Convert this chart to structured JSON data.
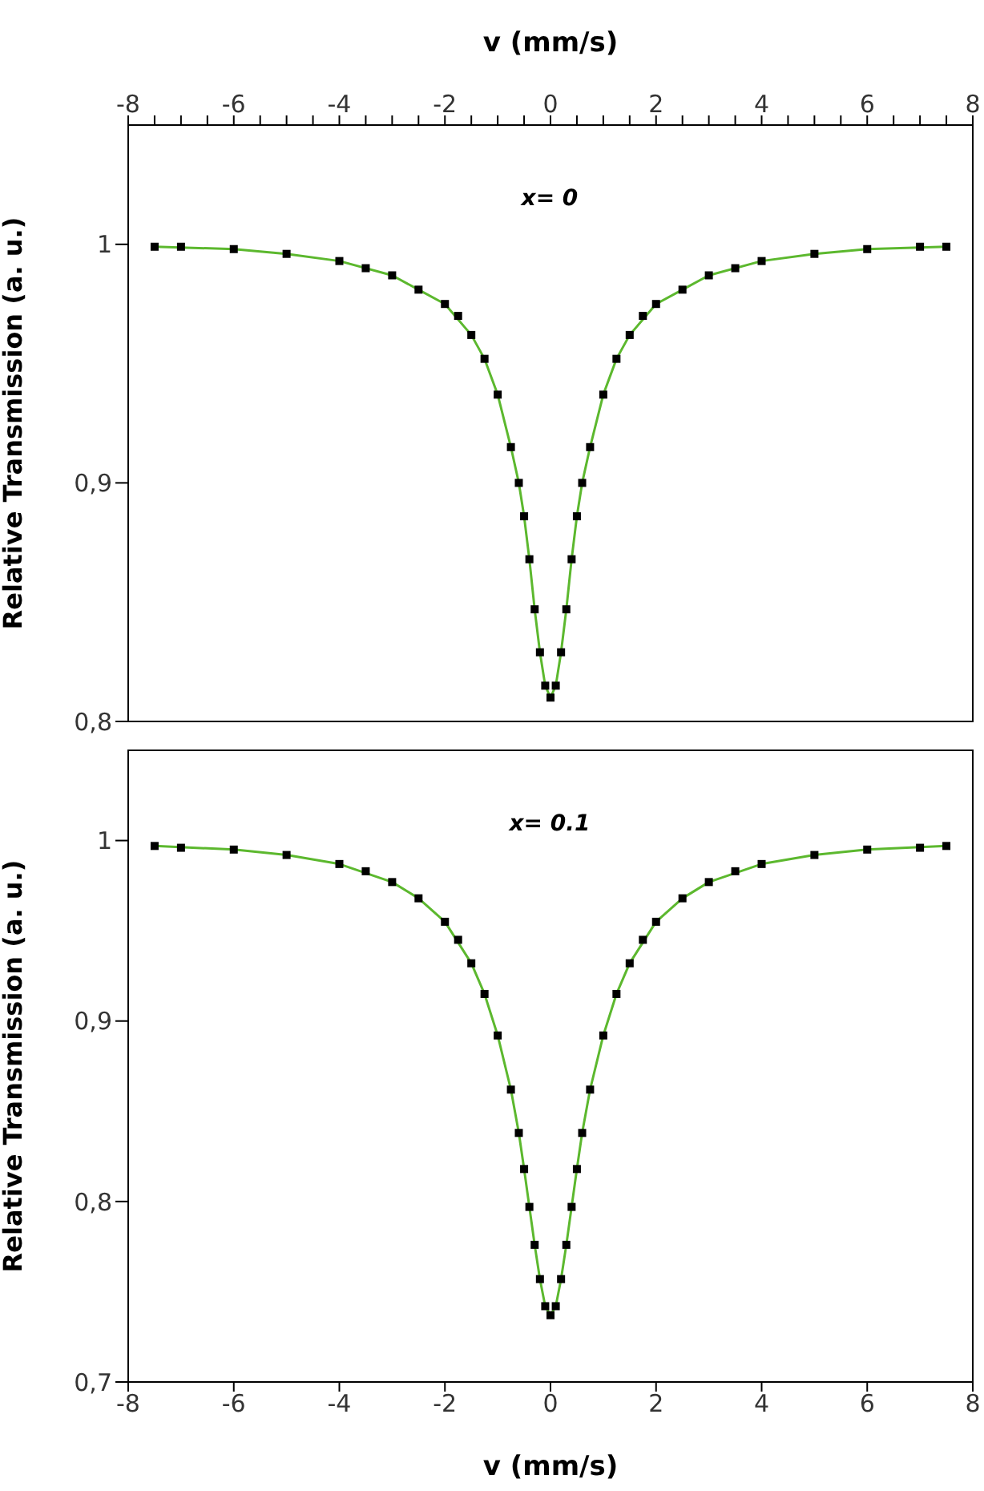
{
  "chart_data": [
    {
      "type": "scatter",
      "annotations": [
        "x= 0"
      ],
      "xlabel": "v (mm/s)",
      "ylabel": "Relative Transmission (a. u.)",
      "xlim": [
        -8,
        8
      ],
      "xticks": [
        -8,
        {
          "value": -7.5,
          "label": null
        },
        {
          "value": -7,
          "label": null
        },
        {
          "value": -6.5,
          "label": null
        },
        -6,
        {
          "value": -5.5,
          "label": null
        },
        {
          "value": -5,
          "label": null
        },
        {
          "value": -4.5,
          "label": null
        },
        -4,
        {
          "value": -3.5,
          "label": null
        },
        {
          "value": -3,
          "label": null
        },
        {
          "value": -2.5,
          "label": null
        },
        -2,
        {
          "value": -1.5,
          "label": null
        },
        {
          "value": -1,
          "label": null
        },
        {
          "value": -0.5,
          "label": null
        },
        0,
        {
          "value": 0.5,
          "label": null
        },
        {
          "value": 1,
          "label": null
        },
        {
          "value": 1.5,
          "label": null
        },
        2,
        {
          "value": 2.5,
          "label": null
        },
        {
          "value": 3,
          "label": null
        },
        {
          "value": 3.5,
          "label": null
        },
        4,
        {
          "value": 4.5,
          "label": null
        },
        {
          "value": 5,
          "label": null
        },
        {
          "value": 5.5,
          "label": null
        },
        6,
        {
          "value": 6.5,
          "label": null
        },
        {
          "value": 7,
          "label": null
        },
        {
          "value": 7.5,
          "label": null
        },
        8
      ],
      "ylim": [
        0.8,
        1.05
      ],
      "yticks": [
        {
          "value": 0.8,
          "label": "0,8"
        },
        {
          "value": 0.9,
          "label": "0,9"
        },
        1
      ],
      "series": [
        {
          "type": "scatter",
          "marker": "square",
          "color": "#000000",
          "x": [
            -7.5,
            -7,
            -6,
            -5,
            -4,
            -3.5,
            -3,
            -2.5,
            -2,
            -1.75,
            -1.5,
            -1.25,
            -1,
            -0.75,
            -0.6,
            -0.5,
            -0.4,
            -0.3,
            -0.2,
            -0.1,
            0,
            0.1,
            0.2,
            0.3,
            0.4,
            0.5,
            0.6,
            0.75,
            1,
            1.25,
            1.5,
            1.75,
            2,
            2.5,
            3,
            3.5,
            4,
            5,
            6,
            7,
            7.5
          ],
          "values": [
            0.999,
            0.999,
            0.998,
            0.996,
            0.993,
            0.99,
            0.987,
            0.981,
            0.975,
            0.97,
            0.962,
            0.952,
            0.937,
            0.915,
            0.9,
            0.886,
            0.868,
            0.847,
            0.829,
            0.815,
            0.81,
            0.815,
            0.829,
            0.847,
            0.868,
            0.886,
            0.9,
            0.915,
            0.937,
            0.952,
            0.962,
            0.97,
            0.975,
            0.981,
            0.987,
            0.99,
            0.993,
            0.996,
            0.998,
            0.999,
            0.999
          ]
        },
        {
          "type": "line",
          "color": "#5cb82e",
          "x": [
            -7.5,
            -6,
            -5,
            -4,
            -3,
            -2.5,
            -2,
            -1.5,
            -1.25,
            -1,
            -0.75,
            -0.6,
            -0.5,
            -0.4,
            -0.3,
            -0.2,
            -0.1,
            0,
            0.1,
            0.2,
            0.3,
            0.4,
            0.5,
            0.6,
            0.75,
            1,
            1.25,
            1.5,
            2,
            2.5,
            3,
            4,
            5,
            6,
            7.5
          ],
          "values": [
            0.999,
            0.998,
            0.996,
            0.993,
            0.987,
            0.981,
            0.975,
            0.962,
            0.952,
            0.937,
            0.915,
            0.9,
            0.886,
            0.868,
            0.847,
            0.829,
            0.815,
            0.81,
            0.815,
            0.829,
            0.847,
            0.868,
            0.886,
            0.9,
            0.915,
            0.937,
            0.952,
            0.962,
            0.975,
            0.981,
            0.987,
            0.993,
            0.996,
            0.998,
            0.999
          ]
        }
      ]
    },
    {
      "type": "scatter",
      "annotations": [
        "x= 0.1"
      ],
      "xlabel": "v (mm/s)",
      "ylabel": "Relative Transmission (a. u.)",
      "xlim": [
        -8,
        8
      ],
      "xticks": [
        -8,
        -6,
        -4,
        -2,
        0,
        2,
        4,
        6,
        8
      ],
      "ylim": [
        0.7,
        1.05
      ],
      "yticks": [
        {
          "value": 0.7,
          "label": "0,7"
        },
        {
          "value": 0.8,
          "label": "0,8"
        },
        {
          "value": 0.9,
          "label": "0,9"
        },
        1
      ],
      "series": [
        {
          "type": "scatter",
          "marker": "square",
          "color": "#000000",
          "x": [
            -7.5,
            -7,
            -6,
            -5,
            -4,
            -3.5,
            -3,
            -2.5,
            -2,
            -1.75,
            -1.5,
            -1.25,
            -1,
            -0.75,
            -0.6,
            -0.5,
            -0.4,
            -0.3,
            -0.2,
            -0.1,
            0,
            0.1,
            0.2,
            0.3,
            0.4,
            0.5,
            0.6,
            0.75,
            1,
            1.25,
            1.5,
            1.75,
            2,
            2.5,
            3,
            3.5,
            4,
            5,
            6,
            7,
            7.5
          ],
          "values": [
            0.997,
            0.996,
            0.995,
            0.992,
            0.987,
            0.983,
            0.977,
            0.968,
            0.955,
            0.945,
            0.932,
            0.915,
            0.892,
            0.862,
            0.838,
            0.818,
            0.797,
            0.776,
            0.757,
            0.742,
            0.737,
            0.742,
            0.757,
            0.776,
            0.797,
            0.818,
            0.838,
            0.862,
            0.892,
            0.915,
            0.932,
            0.945,
            0.955,
            0.968,
            0.977,
            0.983,
            0.987,
            0.992,
            0.995,
            0.996,
            0.997
          ]
        },
        {
          "type": "line",
          "color": "#5cb82e",
          "x": [
            -7.5,
            -6,
            -5,
            -4,
            -3,
            -2.5,
            -2,
            -1.5,
            -1.25,
            -1,
            -0.75,
            -0.6,
            -0.5,
            -0.4,
            -0.3,
            -0.2,
            -0.1,
            0,
            0.1,
            0.2,
            0.3,
            0.4,
            0.5,
            0.6,
            0.75,
            1,
            1.25,
            1.5,
            2,
            2.5,
            3,
            4,
            5,
            6,
            7.5
          ],
          "values": [
            0.997,
            0.995,
            0.992,
            0.987,
            0.977,
            0.968,
            0.955,
            0.932,
            0.915,
            0.892,
            0.862,
            0.838,
            0.818,
            0.797,
            0.776,
            0.757,
            0.742,
            0.737,
            0.742,
            0.757,
            0.776,
            0.797,
            0.818,
            0.838,
            0.862,
            0.892,
            0.915,
            0.932,
            0.955,
            0.968,
            0.977,
            0.987,
            0.992,
            0.995,
            0.997
          ]
        }
      ]
    }
  ]
}
